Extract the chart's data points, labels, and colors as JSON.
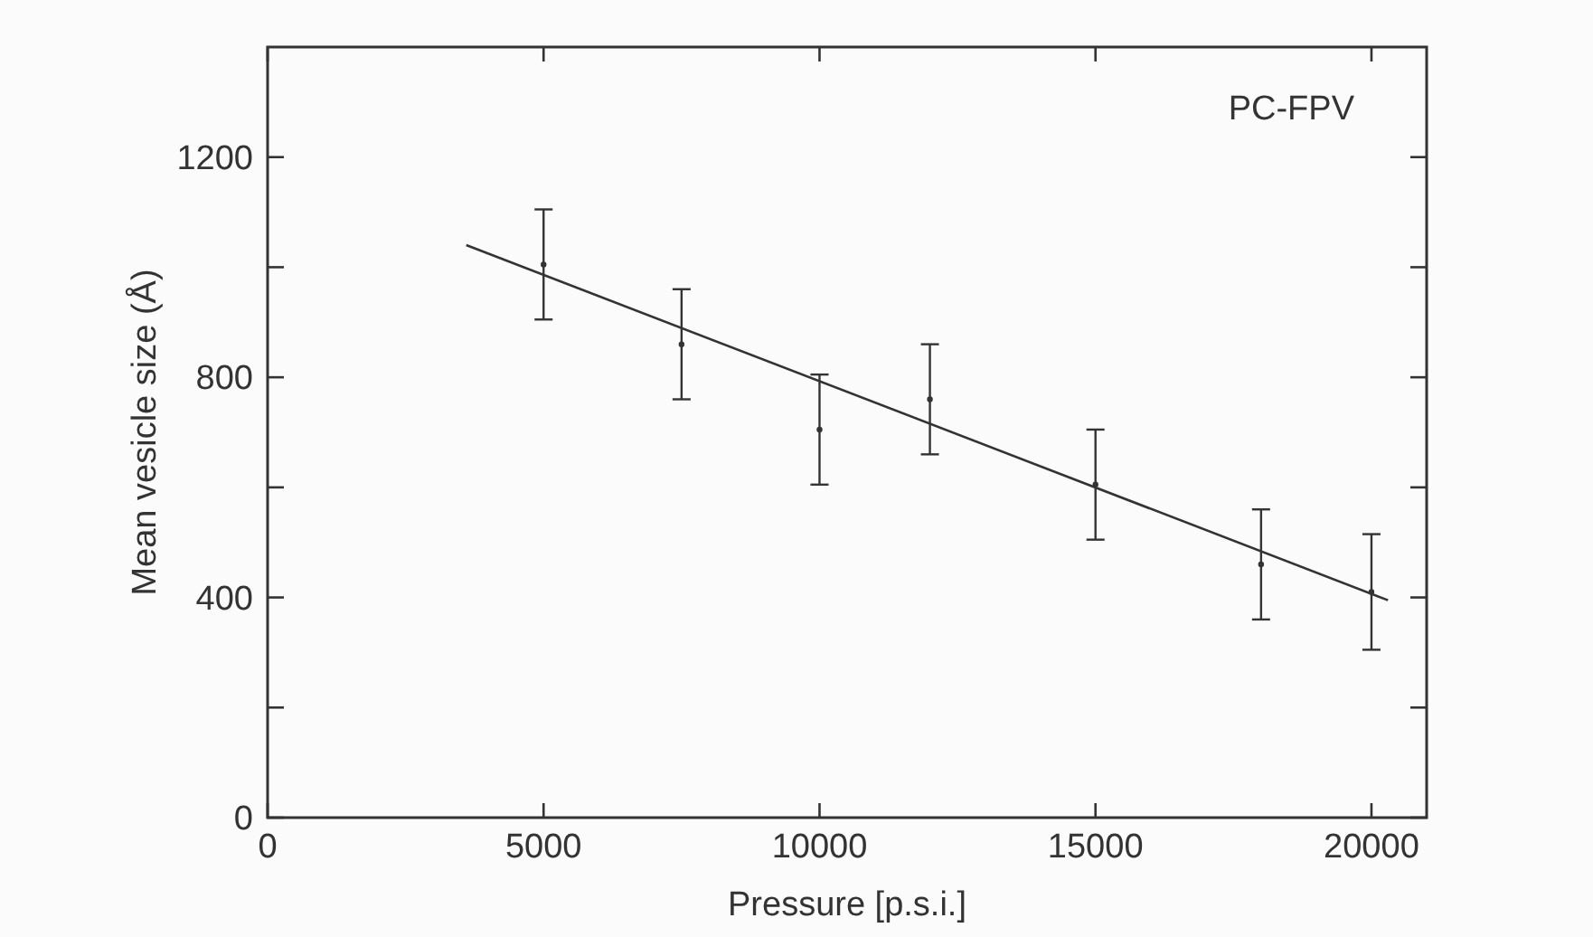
{
  "chart_data": {
    "type": "scatter",
    "xlabel": "Pressure [p.s.i.]",
    "ylabel": "Mean vesicle size (Å)",
    "annotations": [
      "PC-FPV"
    ],
    "xlim": [
      0,
      21000
    ],
    "xticks": [
      0,
      5000,
      10000,
      15000,
      20000
    ],
    "ylim": [
      0,
      1400
    ],
    "yticks": [
      0,
      {
        "value": 200,
        "label": null
      },
      400,
      {
        "value": 600,
        "label": null
      },
      800,
      {
        "value": 1000,
        "label": null
      },
      1200
    ],
    "grid": false,
    "series": [
      {
        "color": "#333333",
        "x": [
          5000,
          7500,
          10000,
          12000,
          15000,
          18000,
          20000
        ],
        "values": [
          1005,
          860,
          705,
          760,
          605,
          460,
          410
        ],
        "errors": [
          100,
          100,
          100,
          100,
          100,
          100,
          105
        ]
      },
      {
        "type": "line",
        "color": "#333333",
        "x": [
          3600,
          20300
        ],
        "values": [
          1040,
          395
        ]
      }
    ]
  }
}
